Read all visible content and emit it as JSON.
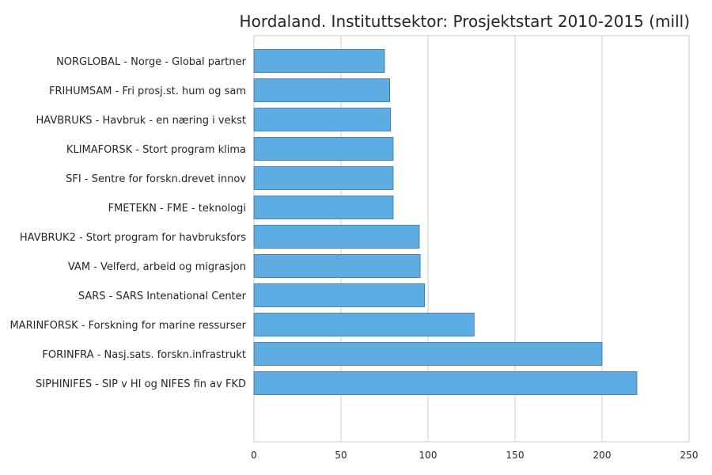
{
  "chart_data": {
    "type": "bar",
    "orientation": "horizontal",
    "title": "Hordaland. Instituttsektor: Prosjektstart 2010-2015 (mill)",
    "xlabel": "",
    "ylabel": "",
    "xlim": [
      0,
      250
    ],
    "xticks": [
      0,
      50,
      100,
      150,
      200,
      250
    ],
    "xtick_labels": [
      "0",
      "50",
      "100",
      "150",
      "200",
      "250"
    ],
    "grid": true,
    "bar_color": "#5dade2",
    "categories": [
      "NORGLOBAL - Norge - Global partner",
      "FRIHUMSAM - Fri prosj.st. hum og sam",
      "HAVBRUKS - Havbruk - en næring i vekst",
      "KLIMAFORSK - Stort program klima",
      "SFI - Sentre for forskn.drevet innov",
      "FMETEKN - FME - teknologi",
      "HAVBRUK2 - Stort program for havbruksfors",
      "VAM - Velferd, arbeid og migrasjon",
      "SARS - SARS Intenational Center",
      "MARINFORSK - Forskning for marine ressurser",
      "FORINFRA - Nasj.sats. forskn.infrastrukt",
      "SIPHINIFES - SIP v HI og NIFES fin av FKD"
    ],
    "values": [
      75,
      78,
      78.5,
      80,
      80,
      80,
      95,
      95.5,
      98,
      126.5,
      200,
      220
    ]
  }
}
